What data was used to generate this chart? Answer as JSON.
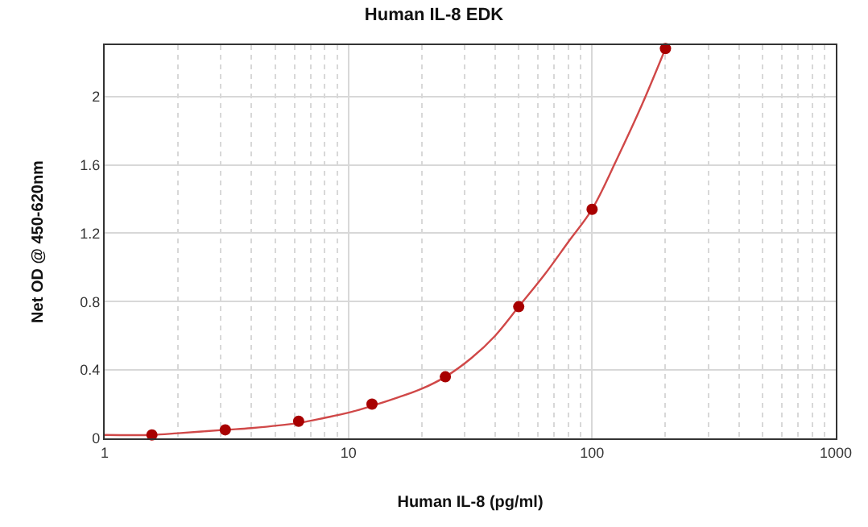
{
  "chart_data": {
    "type": "scatter",
    "title": "Human IL-8 EDK",
    "xlabel": "Human IL-8 (pg/ml)",
    "ylabel": "Net OD @ 450-620nm",
    "log": "x",
    "grid": true,
    "marker": "circle",
    "xlim": [
      1,
      1000
    ],
    "xticks": [
      1,
      10,
      100,
      1000
    ],
    "ylim": [
      0,
      2.3
    ],
    "yticks": [
      0,
      0.4,
      0.8,
      1.2,
      1.6,
      2
    ],
    "series": [
      {
        "color": "#a80000",
        "x": [
          1.5625,
          3.125,
          6.25,
          12.5,
          25,
          50,
          100,
          200
        ],
        "values": [
          0.02,
          0.05,
          0.1,
          0.2,
          0.36,
          0.77,
          1.34,
          2.28
        ]
      },
      {
        "type": "line",
        "color": "#d04848",
        "line_style": "solid",
        "marker": "none",
        "x": [
          1,
          1.5625,
          2,
          3.125,
          4,
          6.25,
          8,
          10,
          12.5,
          16,
          20,
          25,
          32,
          40,
          50,
          64,
          80,
          100,
          128,
          160,
          200
        ],
        "values": [
          0.02,
          0.02,
          0.03,
          0.05,
          0.06,
          0.09,
          0.12,
          0.15,
          0.19,
          0.24,
          0.29,
          0.36,
          0.47,
          0.6,
          0.77,
          0.96,
          1.15,
          1.34,
          1.65,
          1.95,
          2.28
        ]
      }
    ]
  }
}
